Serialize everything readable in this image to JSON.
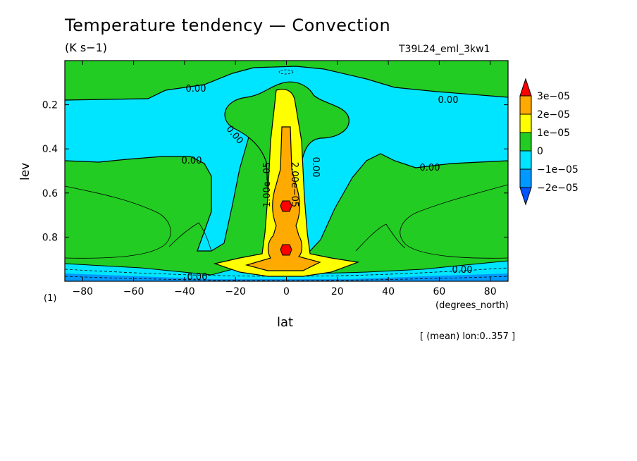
{
  "chart_data": {
    "type": "contour",
    "title": "Temperature tendency — Convection",
    "units": "(K s−1)",
    "run_id": "T39L24_eml_3kw1",
    "xlabel": "lat",
    "xunit": "(degrees_north)",
    "ylabel": "lev",
    "ycorner": "(1)",
    "footnote": "[ (mean) lon:0..357 ]",
    "xlim": [
      -87,
      87
    ],
    "ylim": [
      1.0,
      0.0
    ],
    "x_ticks": [
      -80,
      -60,
      -40,
      -20,
      0,
      20,
      40,
      60,
      80
    ],
    "x_tick_labels": [
      "−80",
      "−60",
      "−40",
      "−20",
      "0",
      "20",
      "40",
      "60",
      "80"
    ],
    "y_ticks": [
      0.2,
      0.4,
      0.6,
      0.8
    ],
    "y_tick_labels": [
      "0.2",
      "0.4",
      "0.6",
      "0.8"
    ],
    "contour_labels": [
      "0.00",
      "0.00",
      "0.00",
      "0.00",
      "0.00",
      "0.00",
      "0.00",
      "1.00e−05",
      "2.00e−05",
      "0.00"
    ],
    "legend": {
      "placement": "right",
      "levels": [
        "3e−05",
        "2e−05",
        "1e−05",
        "0",
        "−1e−05",
        "−2e−05"
      ],
      "colors": [
        "#ff0000",
        "#ffaa00",
        "#ffff00",
        "#22cc22",
        "#00e5ff",
        "#0099ff",
        "#0055ff"
      ]
    }
  }
}
